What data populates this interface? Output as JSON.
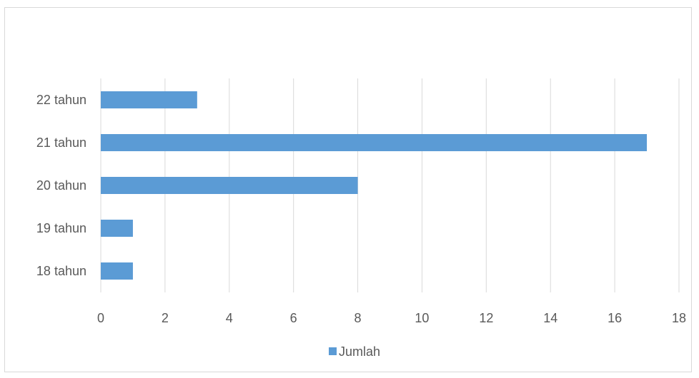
{
  "chart_data": {
    "type": "bar",
    "orientation": "horizontal",
    "categories": [
      "18 tahun",
      "19 tahun",
      "20 tahun",
      "21 tahun",
      "22 tahun"
    ],
    "series": [
      {
        "name": "Jumlah",
        "values": [
          1,
          1,
          8,
          17,
          3
        ],
        "color": "#5b9bd5"
      }
    ],
    "xlim": [
      0,
      18
    ],
    "x_ticks": [
      0,
      2,
      4,
      6,
      8,
      10,
      12,
      14,
      16,
      18
    ],
    "grid": "vertical",
    "legend_position": "bottom",
    "colors": {
      "gridline": "#d9d9d9",
      "text": "#595959",
      "frame": "#d9d9d9"
    }
  }
}
